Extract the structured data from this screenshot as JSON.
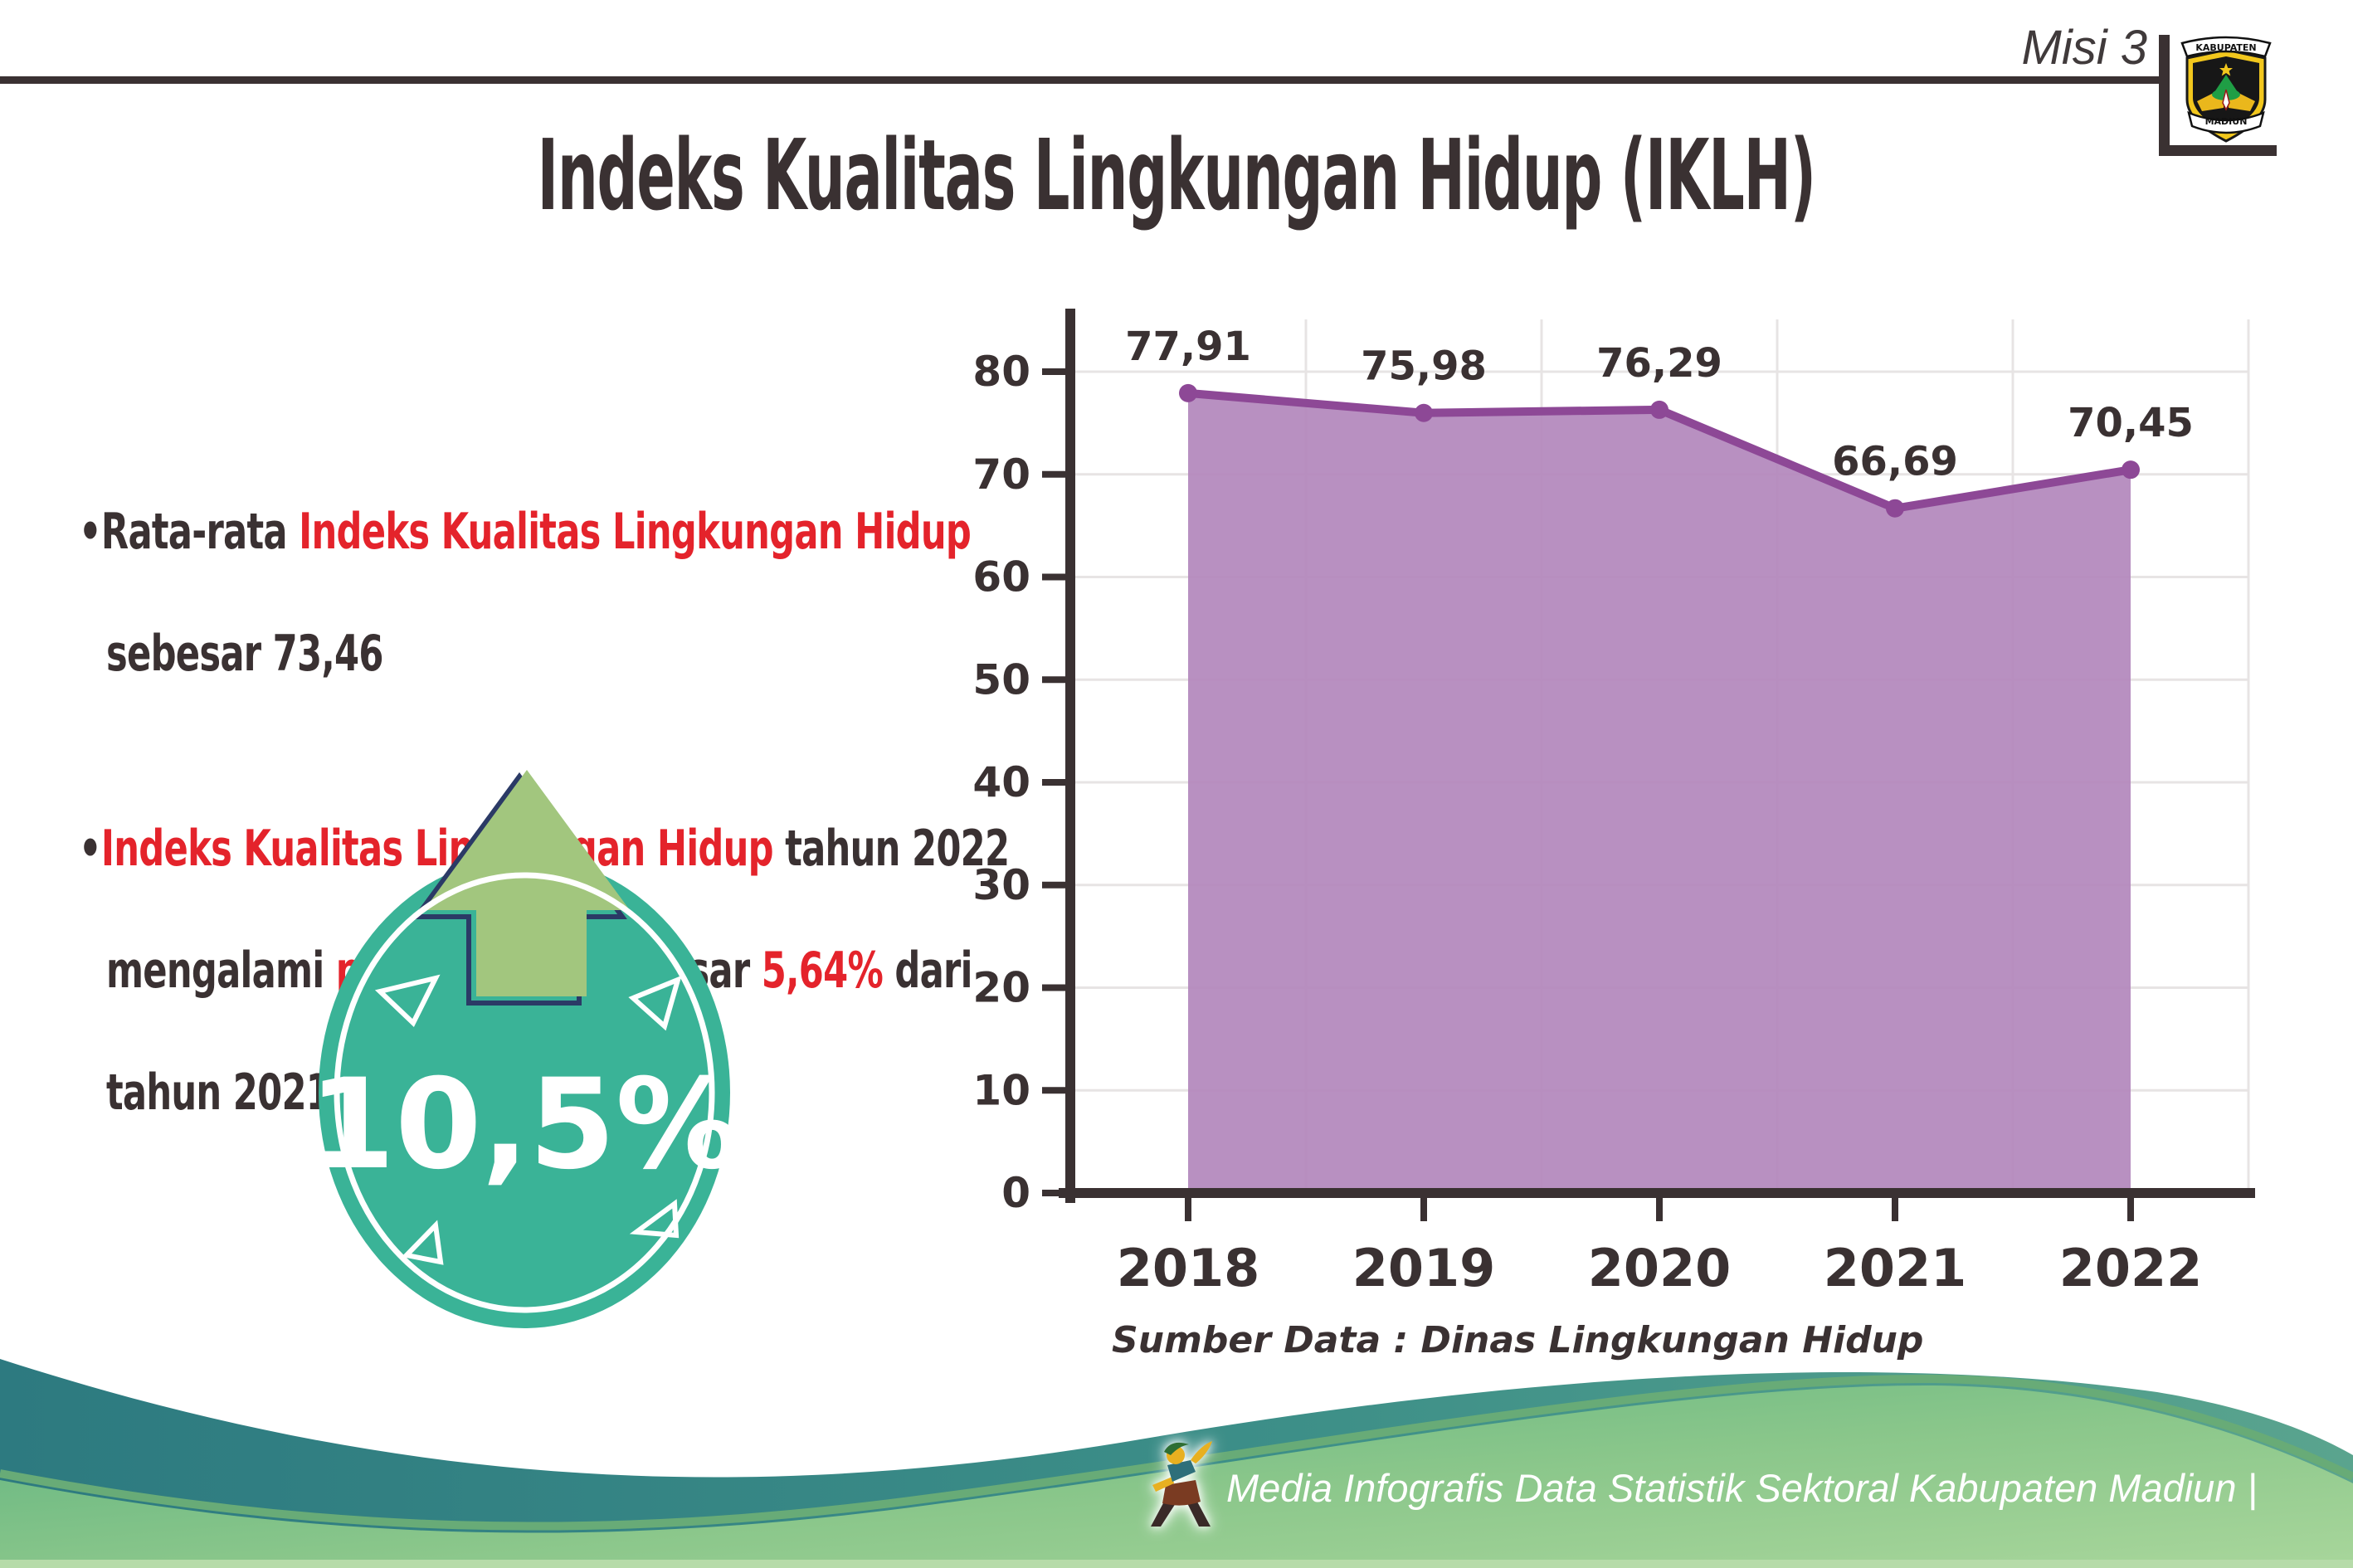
{
  "header": {
    "mission_label": "Misi 3",
    "title": "Indeks Kualitas Lingkungan Hidup (IKLH)",
    "logo": {
      "top_text": "KABUPATEN",
      "bottom_text": "MADIUN"
    }
  },
  "insights": {
    "bullet_char": "•",
    "b1": {
      "seg1_dark": "Rata-rata ",
      "seg2_red": "Indeks Kualitas Lingkungan Hidup",
      "line2_dark": "sebesar 73,46"
    },
    "b2": {
      "seg1_red": "Indeks Kualitas Lingkungan Hidup ",
      "seg2_dark": "tahun 2022",
      "l2_d1": "mengalami ",
      "l2_r1": "peningkatan ",
      "l2_d2": "sebesar ",
      "l2_r2": "5,64% ",
      "l2_d3": "dari",
      "line3_dark": "tahun 2021"
    }
  },
  "badge": {
    "value": "10,5%",
    "circle_color": "#3ab397",
    "arrow_color": "#a2c67e"
  },
  "chart_data": {
    "type": "area",
    "title": "",
    "categories": [
      "2018",
      "2019",
      "2020",
      "2021",
      "2022"
    ],
    "values": [
      77.91,
      75.98,
      76.29,
      66.69,
      70.45
    ],
    "labels": [
      "77,91",
      "75,98",
      "76,29",
      "66,69",
      "70,45"
    ],
    "yticks": [
      0,
      10,
      20,
      30,
      40,
      50,
      60,
      70,
      80
    ],
    "ylim": [
      0,
      85
    ],
    "grid": true,
    "legend": "none",
    "source": "Sumber Data : Dinas Lingkungan Hidup",
    "line_color": "#8d4896",
    "fill_color": "#b388bc",
    "axis_color": "#3a3132",
    "grid_color": "#e7e4e4",
    "label_color": "#3a3132"
  },
  "footer": {
    "credit": "Media Infografis Data Statistik Sektoral Kabupaten Madiun |"
  },
  "colors": {
    "accent_red": "#e4232b",
    "text_dark": "#3a3132",
    "teal_wave": "#35808a",
    "green_wave": "#7dc287"
  }
}
